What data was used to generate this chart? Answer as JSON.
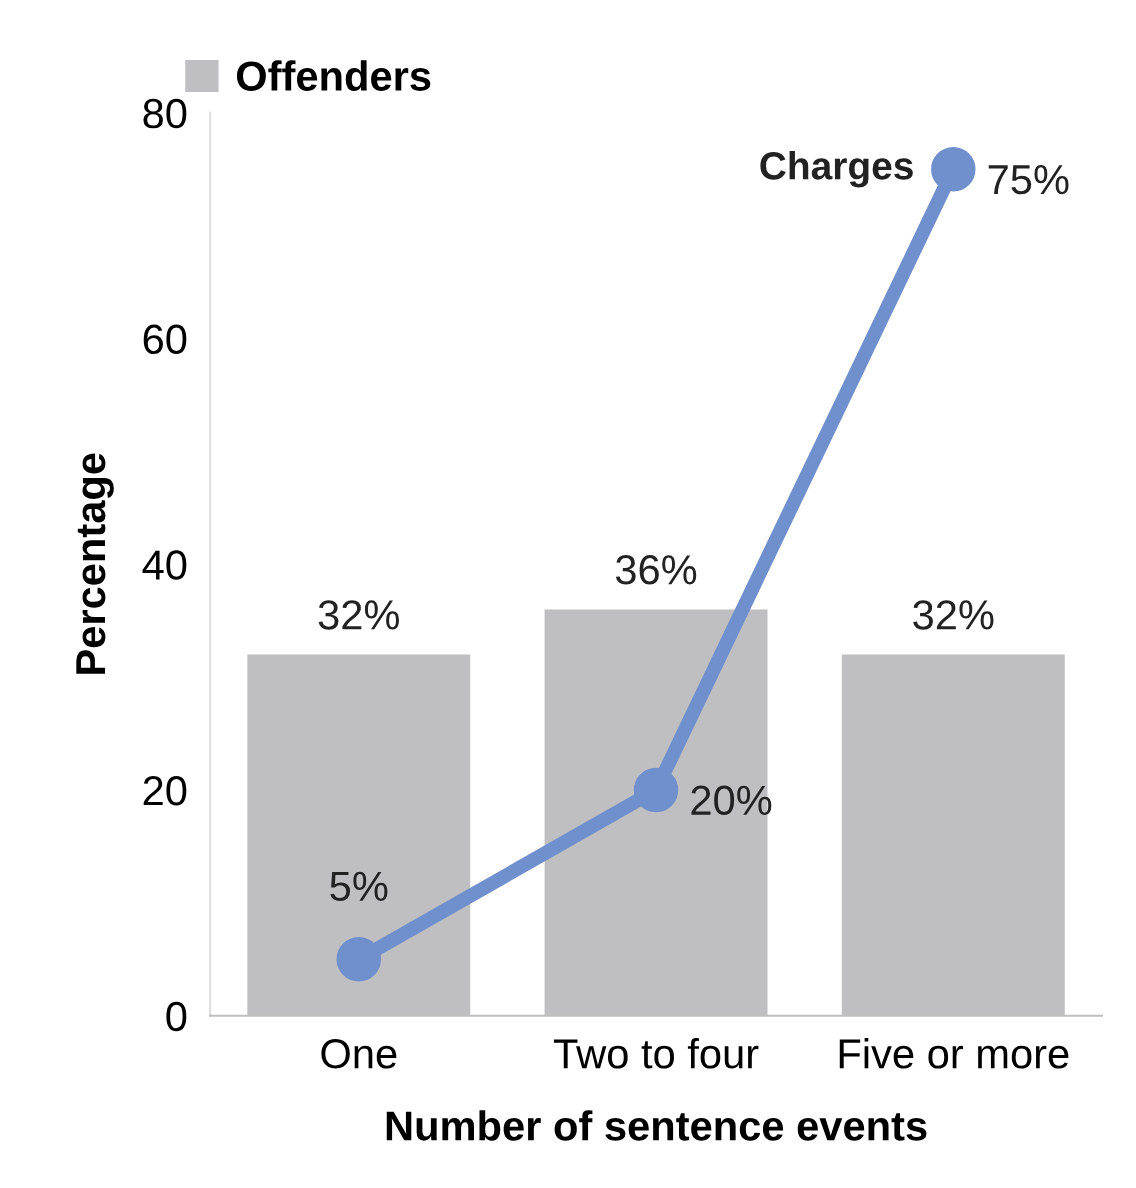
{
  "chart_data": {
    "type": "bar",
    "xlabel": "Number of sentence events",
    "ylabel": "Percentage",
    "categories": [
      "One",
      "Two to four",
      "Five or more"
    ],
    "series": [
      {
        "name": "Offenders",
        "color": "#bfbfc1",
        "values": [
          32,
          36,
          32
        ],
        "value_labels": [
          "32%",
          "36%",
          "32%"
        ]
      },
      {
        "name": "Charges",
        "type": "line",
        "color": "#6f90cc",
        "values": [
          5,
          20,
          75
        ],
        "value_labels": [
          "5%",
          "20%",
          "75%"
        ],
        "marker": "circle",
        "line_style": "solid"
      }
    ],
    "ylim": [
      0,
      80
    ],
    "yticks": [
      0,
      20,
      40,
      60,
      80
    ],
    "grid": false,
    "legend": "top left"
  }
}
